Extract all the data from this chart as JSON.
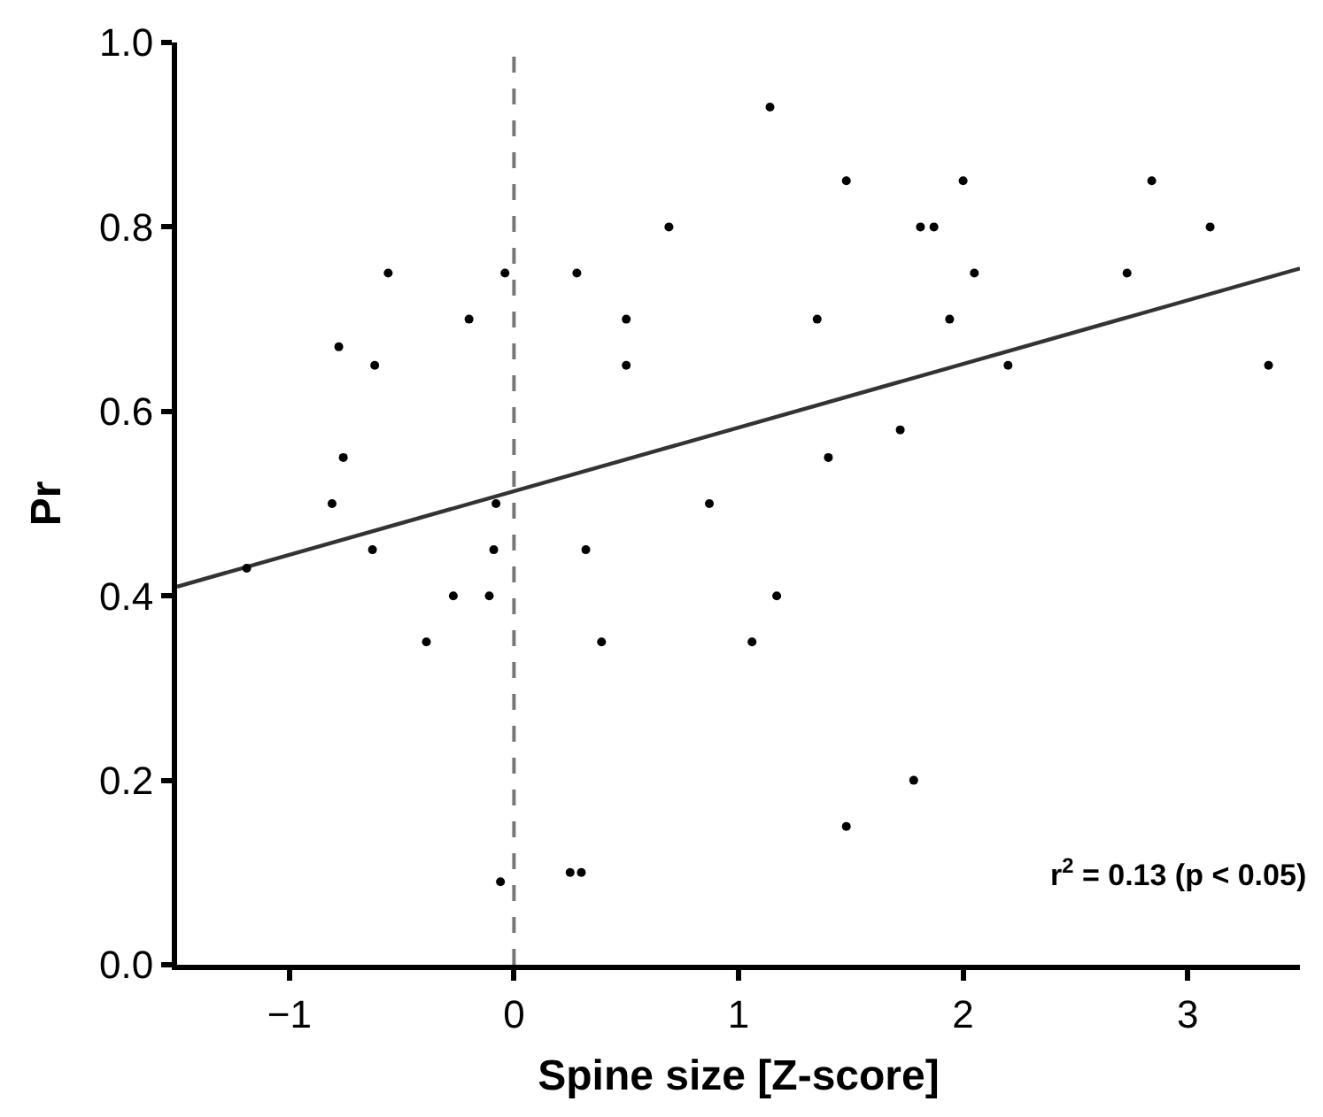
{
  "chart_data": {
    "type": "scatter",
    "xlabel": "Spine size [Z-score]",
    "ylabel": "Pr",
    "xlim": [
      -1.5,
      3.5
    ],
    "xticks": [
      {
        "value": -1,
        "label": "−1"
      },
      0,
      1,
      2,
      3
    ],
    "ylim": [
      0.0,
      1.0
    ],
    "yticks": [
      {
        "value": 0,
        "label": "0.0"
      },
      0.2,
      0.4,
      0.6,
      0.8,
      {
        "value": 1,
        "label": "1.0"
      }
    ],
    "marker": "circle",
    "series": [
      {
        "color": "#000000",
        "x": [
          -0.56,
          -0.04,
          0.28,
          0.69,
          -0.2,
          0.5,
          -0.78,
          -0.62,
          0.5,
          -0.76,
          -0.81,
          -0.08,
          -0.63,
          -0.09,
          0.32,
          -1.19,
          -0.27,
          -0.11,
          -0.39,
          0.39,
          -0.06,
          0.25,
          0.3,
          1.14,
          1.48,
          2.0,
          2.84,
          1.81,
          1.87,
          3.1,
          2.05,
          2.73,
          1.35,
          1.94,
          2.2,
          3.36,
          1.72,
          1.4,
          0.87,
          1.17,
          1.06,
          1.78,
          1.48
        ],
        "values": [
          0.75,
          0.75,
          0.75,
          0.8,
          0.7,
          0.7,
          0.67,
          0.65,
          0.65,
          0.55,
          0.5,
          0.5,
          0.45,
          0.45,
          0.45,
          0.43,
          0.4,
          0.4,
          0.35,
          0.35,
          0.09,
          0.1,
          0.1,
          0.93,
          0.85,
          0.85,
          0.85,
          0.8,
          0.8,
          0.8,
          0.75,
          0.75,
          0.7,
          0.7,
          0.65,
          0.65,
          0.58,
          0.55,
          0.5,
          0.4,
          0.35,
          0.2,
          0.15
        ]
      },
      {
        "type": "line",
        "color": "#333333",
        "line_style": "solid",
        "marker": "none",
        "x": [
          -1.5,
          3.5
        ],
        "values": [
          0.41,
          0.755
        ]
      }
    ],
    "ref_lines": [
      {
        "axis": "x",
        "value": 0,
        "label": null,
        "color": "#777777",
        "line_style": "dashed"
      }
    ],
    "annotations": [
      "r$^{2}$ = 0.13 (p < 0.05)"
    ]
  }
}
